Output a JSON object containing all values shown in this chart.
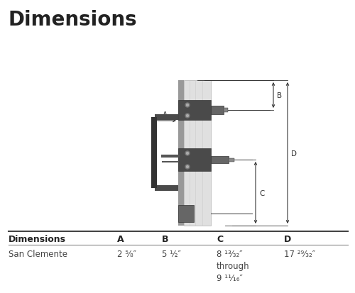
{
  "title": "Dimensions",
  "title_fontsize": 20,
  "title_fontweight": "bold",
  "title_color": "#222222",
  "bg_color": "#ffffff",
  "table_header": [
    "Dimensions",
    "A",
    "B",
    "C",
    "D"
  ],
  "table_row": [
    "San Clemente",
    "2 ⁵⁄₈″",
    "5 ½″",
    "8 ¹³⁄₃₂″\nthrough\n9 ¹¹⁄₁₆″",
    "17 ²⁹⁄₃₂″"
  ],
  "annotation_color": "#333333",
  "line_color": "#333333",
  "door_color": "#e0e0e0",
  "door_stroke": "#aaaaaa",
  "hardware_dark": "#4a4a4a",
  "hardware_mid": "#666666",
  "hardware_light": "#888888"
}
